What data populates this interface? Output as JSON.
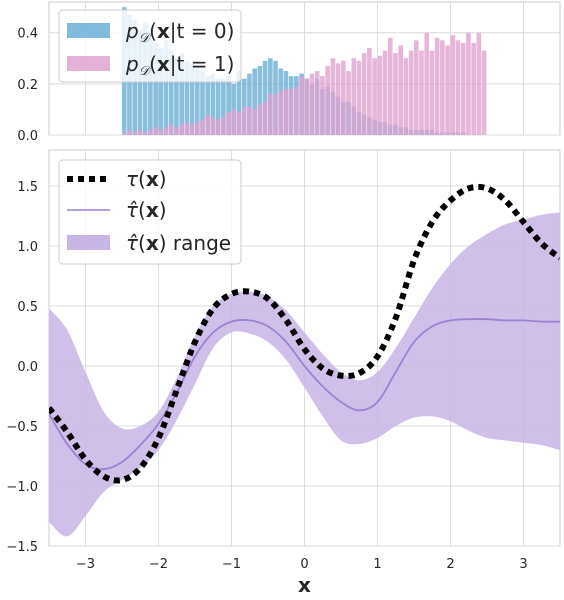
{
  "chart_data": [
    {
      "type": "bar",
      "xlim": [
        -3.5,
        3.5
      ],
      "ylim": [
        0.0,
        0.52
      ],
      "yticks": [
        0.0,
        0.2,
        0.4
      ],
      "ytick_labels": [
        "0.0",
        "0.2",
        "0.4"
      ],
      "grid": true,
      "legend_position": "top-left",
      "bin_width": 0.0714,
      "series": [
        {
          "name": "p_D(x|t = 0)",
          "color": "#6aaed6",
          "bins": [
            [
              -2.5,
              0.5
            ],
            [
              -2.429,
              0.47
            ],
            [
              -2.357,
              0.45
            ],
            [
              -2.286,
              0.41
            ],
            [
              -2.214,
              0.44
            ],
            [
              -2.143,
              0.38
            ],
            [
              -2.071,
              0.36
            ],
            [
              -2.0,
              0.34
            ],
            [
              -1.929,
              0.37
            ],
            [
              -1.857,
              0.33
            ],
            [
              -1.786,
              0.3
            ],
            [
              -1.714,
              0.32
            ],
            [
              -1.643,
              0.29
            ],
            [
              -1.571,
              0.28
            ],
            [
              -1.5,
              0.26
            ],
            [
              -1.429,
              0.25
            ],
            [
              -1.357,
              0.23
            ],
            [
              -1.286,
              0.24
            ],
            [
              -1.214,
              0.22
            ],
            [
              -1.143,
              0.22
            ],
            [
              -1.071,
              0.23
            ],
            [
              -1.0,
              0.2
            ],
            [
              -0.929,
              0.25
            ],
            [
              -0.857,
              0.22
            ],
            [
              -0.786,
              0.24
            ],
            [
              -0.714,
              0.26
            ],
            [
              -0.643,
              0.27
            ],
            [
              -0.571,
              0.29
            ],
            [
              -0.5,
              0.3
            ],
            [
              -0.429,
              0.29
            ],
            [
              -0.357,
              0.26
            ],
            [
              -0.286,
              0.25
            ],
            [
              -0.214,
              0.23
            ],
            [
              -0.143,
              0.23
            ],
            [
              -0.071,
              0.24
            ],
            [
              0.0,
              0.22
            ],
            [
              0.071,
              0.2
            ],
            [
              0.143,
              0.22
            ],
            [
              0.214,
              0.18
            ],
            [
              0.286,
              0.19
            ],
            [
              0.357,
              0.17
            ],
            [
              0.429,
              0.15
            ],
            [
              0.5,
              0.13
            ],
            [
              0.571,
              0.13
            ],
            [
              0.643,
              0.11
            ],
            [
              0.714,
              0.09
            ],
            [
              0.786,
              0.08
            ],
            [
              0.857,
              0.07
            ],
            [
              0.929,
              0.06
            ],
            [
              1.0,
              0.05
            ],
            [
              1.071,
              0.05
            ],
            [
              1.143,
              0.04
            ],
            [
              1.214,
              0.04
            ],
            [
              1.286,
              0.03
            ],
            [
              1.357,
              0.03
            ],
            [
              1.429,
              0.02
            ],
            [
              1.5,
              0.02
            ],
            [
              1.571,
              0.02
            ],
            [
              1.643,
              0.02
            ],
            [
              1.714,
              0.02
            ],
            [
              1.786,
              0.01
            ],
            [
              1.857,
              0.01
            ],
            [
              1.929,
              0.01
            ],
            [
              2.0,
              0.01
            ],
            [
              2.071,
              0.01
            ],
            [
              2.143,
              0.01
            ],
            [
              2.214,
              0.0
            ],
            [
              2.286,
              0.0
            ],
            [
              2.357,
              0.0
            ],
            [
              2.429,
              0.0
            ]
          ]
        },
        {
          "name": "p_D(x|t = 1)",
          "color": "#e0a3d0",
          "bins": [
            [
              -2.5,
              0.01
            ],
            [
              -2.429,
              0.02
            ],
            [
              -2.357,
              0.01
            ],
            [
              -2.286,
              0.02
            ],
            [
              -2.214,
              0.01
            ],
            [
              -2.143,
              0.02
            ],
            [
              -2.071,
              0.03
            ],
            [
              -2.0,
              0.02
            ],
            [
              -1.929,
              0.03
            ],
            [
              -1.857,
              0.04
            ],
            [
              -1.786,
              0.03
            ],
            [
              -1.714,
              0.04
            ],
            [
              -1.643,
              0.05
            ],
            [
              -1.571,
              0.04
            ],
            [
              -1.5,
              0.05
            ],
            [
              -1.429,
              0.06
            ],
            [
              -1.357,
              0.08
            ],
            [
              -1.286,
              0.07
            ],
            [
              -1.214,
              0.06
            ],
            [
              -1.143,
              0.07
            ],
            [
              -1.071,
              0.09
            ],
            [
              -1.0,
              0.1
            ],
            [
              -0.929,
              0.09
            ],
            [
              -0.857,
              0.11
            ],
            [
              -0.786,
              0.11
            ],
            [
              -0.714,
              0.1
            ],
            [
              -0.643,
              0.12
            ],
            [
              -0.571,
              0.13
            ],
            [
              -0.5,
              0.16
            ],
            [
              -0.429,
              0.16
            ],
            [
              -0.357,
              0.17
            ],
            [
              -0.286,
              0.18
            ],
            [
              -0.214,
              0.18
            ],
            [
              -0.143,
              0.19
            ],
            [
              -0.071,
              0.23
            ],
            [
              0.0,
              0.22
            ],
            [
              0.071,
              0.24
            ],
            [
              0.143,
              0.25
            ],
            [
              0.214,
              0.23
            ],
            [
              0.286,
              0.27
            ],
            [
              0.357,
              0.3
            ],
            [
              0.429,
              0.28
            ],
            [
              0.5,
              0.29
            ],
            [
              0.571,
              0.25
            ],
            [
              0.643,
              0.3
            ],
            [
              0.714,
              0.29
            ],
            [
              0.786,
              0.32
            ],
            [
              0.857,
              0.34
            ],
            [
              0.929,
              0.3
            ],
            [
              1.0,
              0.31
            ],
            [
              1.071,
              0.33
            ],
            [
              1.143,
              0.38
            ],
            [
              1.214,
              0.32
            ],
            [
              1.286,
              0.35
            ],
            [
              1.357,
              0.3
            ],
            [
              1.429,
              0.33
            ],
            [
              1.5,
              0.37
            ],
            [
              1.571,
              0.33
            ],
            [
              1.643,
              0.4
            ],
            [
              1.714,
              0.33
            ],
            [
              1.786,
              0.38
            ],
            [
              1.857,
              0.37
            ],
            [
              1.929,
              0.35
            ],
            [
              2.0,
              0.39
            ],
            [
              2.071,
              0.37
            ],
            [
              2.143,
              0.36
            ],
            [
              2.214,
              0.4
            ],
            [
              2.286,
              0.36
            ],
            [
              2.357,
              0.4
            ],
            [
              2.429,
              0.33
            ]
          ]
        }
      ]
    },
    {
      "type": "line",
      "xlabel": "x",
      "xlim": [
        -3.5,
        3.5
      ],
      "ylim": [
        -1.5,
        1.8
      ],
      "xticks": [
        -3,
        -2,
        -1,
        0,
        1,
        2,
        3
      ],
      "xtick_labels": [
        "−3",
        "−2",
        "−1",
        "0",
        "1",
        "2",
        "3"
      ],
      "yticks": [
        -1.5,
        -1.0,
        -0.5,
        0.0,
        0.5,
        1.0,
        1.5
      ],
      "ytick_labels": [
        "−1.5",
        "−1.0",
        "−0.5",
        "0.0",
        "0.5",
        "1.0",
        "1.5"
      ],
      "grid": true,
      "legend_position": "top-left",
      "x": [
        -3.5,
        -3.25,
        -3.0,
        -2.75,
        -2.5,
        -2.25,
        -2.0,
        -1.75,
        -1.5,
        -1.25,
        -1.0,
        -0.75,
        -0.5,
        -0.25,
        0.0,
        0.25,
        0.5,
        0.75,
        1.0,
        1.25,
        1.5,
        1.75,
        2.0,
        2.25,
        2.5,
        2.75,
        3.0,
        3.25,
        3.5
      ],
      "series": [
        {
          "name": "τ(x)",
          "style": "dotted",
          "color": "#000000",
          "values": [
            -0.35,
            -0.55,
            -0.78,
            -0.92,
            -0.95,
            -0.85,
            -0.6,
            -0.2,
            0.2,
            0.48,
            0.6,
            0.62,
            0.56,
            0.38,
            0.14,
            -0.02,
            -0.08,
            -0.06,
            0.08,
            0.4,
            0.88,
            1.2,
            1.38,
            1.48,
            1.48,
            1.38,
            1.2,
            1.02,
            0.9
          ]
        },
        {
          "name": "τ̂(x)",
          "style": "solid",
          "color": "#9b80d4",
          "values": [
            -0.4,
            -0.65,
            -0.82,
            -0.86,
            -0.8,
            -0.66,
            -0.48,
            -0.22,
            0.08,
            0.28,
            0.37,
            0.38,
            0.33,
            0.2,
            0.0,
            -0.17,
            -0.3,
            -0.37,
            -0.3,
            -0.05,
            0.2,
            0.33,
            0.38,
            0.39,
            0.39,
            0.38,
            0.38,
            0.37,
            0.37
          ]
        },
        {
          "name": "τ̂(x) range",
          "style": "band",
          "color": "#c8b5e5",
          "lower": [
            -1.3,
            -1.42,
            -1.25,
            -1.05,
            -0.95,
            -0.85,
            -0.7,
            -0.45,
            -0.15,
            0.15,
            0.28,
            0.27,
            0.2,
            0.05,
            -0.18,
            -0.42,
            -0.62,
            -0.65,
            -0.6,
            -0.5,
            -0.43,
            -0.42,
            -0.46,
            -0.54,
            -0.6,
            -0.62,
            -0.64,
            -0.66,
            -0.7
          ],
          "upper": [
            0.48,
            0.3,
            -0.05,
            -0.38,
            -0.52,
            -0.5,
            -0.38,
            -0.1,
            0.25,
            0.5,
            0.6,
            0.62,
            0.58,
            0.46,
            0.28,
            0.1,
            -0.05,
            -0.12,
            -0.05,
            0.15,
            0.4,
            0.65,
            0.85,
            1.0,
            1.1,
            1.18,
            1.22,
            1.26,
            1.28
          ]
        }
      ]
    }
  ]
}
